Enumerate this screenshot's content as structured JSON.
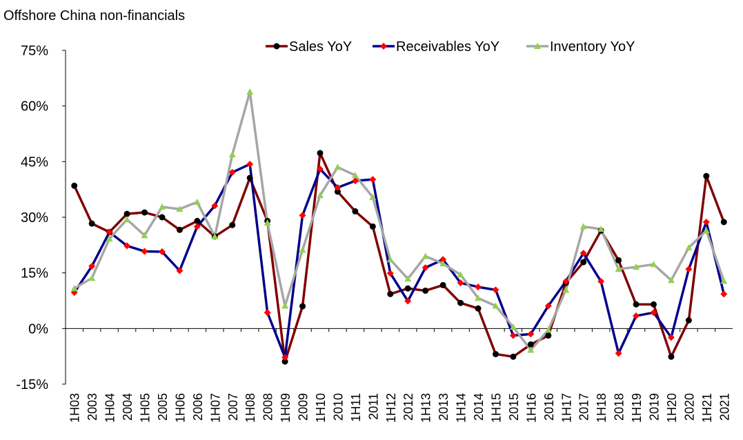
{
  "chart_data": {
    "type": "line",
    "title": "Offshore China non-financials",
    "categories": [
      "1H03",
      "2003",
      "1H04",
      "2004",
      "1H05",
      "2005",
      "1H06",
      "2006",
      "1H07",
      "2007",
      "1H08",
      "2008",
      "1H09",
      "2009",
      "1H10",
      "2010",
      "1H11",
      "2011",
      "1H12",
      "2012",
      "1H13",
      "2013",
      "1H14",
      "2014",
      "1H15",
      "2015",
      "1H16",
      "2016",
      "1H17",
      "2017",
      "1H18",
      "2018",
      "1H19",
      "2019",
      "1H20",
      "2020",
      "1H21",
      "2021"
    ],
    "series": [
      {
        "name": "Sales YoY",
        "color": "#800000",
        "marker": "circle",
        "marker_color": "#000000",
        "values": [
          38.5,
          28.3,
          26,
          30.9,
          31.3,
          30,
          26.6,
          29,
          24.8,
          27.9,
          40.6,
          29,
          -8.9,
          6,
          47.3,
          36.9,
          31.6,
          27.5,
          9.3,
          10.8,
          10.2,
          11.7,
          6.9,
          5.4,
          -6.9,
          -7.6,
          -4.3,
          -1.9,
          12.3,
          17.9,
          26.4,
          18.4,
          6.5,
          6.5,
          -7.6,
          2.2,
          41.1,
          28.7
        ]
      },
      {
        "name": "Receivables YoY",
        "color": "#00008b",
        "marker": "diamond",
        "marker_color": "#ff0000",
        "values": [
          9.7,
          16.8,
          26,
          22.3,
          20.8,
          20.7,
          15.6,
          27.5,
          33.1,
          42.1,
          44.3,
          4.3,
          -7.8,
          30.5,
          43,
          38,
          39.8,
          40.2,
          14.9,
          7.4,
          16.4,
          18.6,
          12.3,
          11.2,
          10.4,
          -1.9,
          -1.5,
          6.1,
          12.7,
          20.3,
          12.7,
          -6.7,
          3.4,
          4.3,
          -2.4,
          16,
          28.7,
          9.3
        ]
      },
      {
        "name": "Inventory YoY",
        "color": "#a6a6a6",
        "marker": "triangle",
        "marker_color": "#92d050",
        "values": [
          10.8,
          13.6,
          24.2,
          29.4,
          25.1,
          32.8,
          32.2,
          34.1,
          24.8,
          46.9,
          63.8,
          28.5,
          6.1,
          21.2,
          35.9,
          43.5,
          41.3,
          35.4,
          18.6,
          13.4,
          19.5,
          17.5,
          14.5,
          8.2,
          6.1,
          0.4,
          -5.8,
          -0.4,
          10.4,
          27.5,
          26.8,
          16,
          16.6,
          17.3,
          13,
          21.8,
          26.4,
          12.8
        ]
      }
    ],
    "ylim": [
      -15,
      75
    ],
    "yticks": [
      {
        "value": -15,
        "label": "-15%"
      },
      {
        "value": 0,
        "label": "0%"
      },
      {
        "value": 15,
        "label": "15%"
      },
      {
        "value": 30,
        "label": "30%"
      },
      {
        "value": 45,
        "label": "45%"
      },
      {
        "value": 60,
        "label": "60%"
      },
      {
        "value": 75,
        "label": "75%"
      }
    ],
    "negative_tick_color": "#ff0000",
    "legend": "top"
  }
}
